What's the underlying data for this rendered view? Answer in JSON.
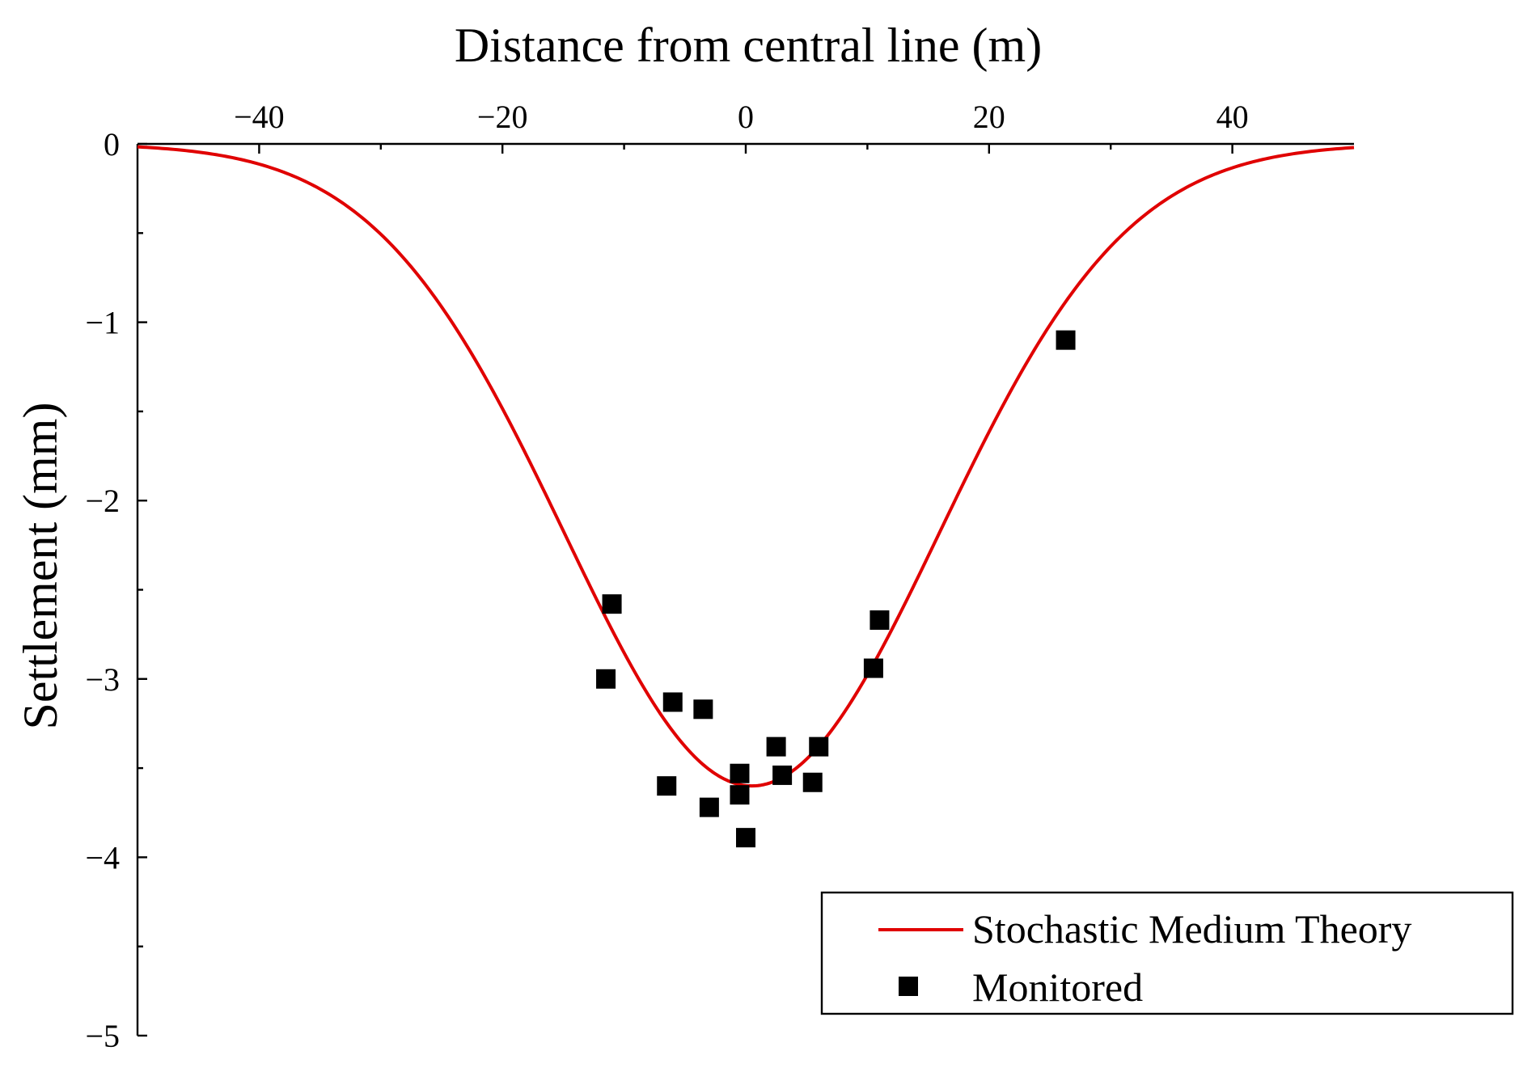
{
  "chart_data": {
    "type": "line+scatter",
    "xlabel": "Distance from central line (m)",
    "ylabel": "Settlement (mm)",
    "xlim": [
      -50,
      50
    ],
    "ylim": [
      -5,
      0
    ],
    "x_ticks": [
      {
        "value": -40,
        "label": "−40"
      },
      {
        "value": -20,
        "label": "−20"
      },
      {
        "value": 0,
        "label": "0"
      },
      {
        "value": 20,
        "label": "20"
      },
      {
        "value": 40,
        "label": "40"
      }
    ],
    "x_minor_ticks": [
      -30,
      -10,
      10,
      30
    ],
    "y_ticks": [
      {
        "value": 0,
        "label": "0"
      },
      {
        "value": -1,
        "label": "−1"
      },
      {
        "value": -2,
        "label": "−2"
      },
      {
        "value": -3,
        "label": "−3"
      },
      {
        "value": -4,
        "label": "−4"
      },
      {
        "value": -5,
        "label": "−5"
      }
    ],
    "y_minor_ticks": [
      -0.5,
      -1.5,
      -2.5,
      -3.5,
      -4.5
    ],
    "series": [
      {
        "name": "Stochastic Medium Theory",
        "type": "line",
        "color": "#e00000",
        "model": {
          "peak": -3.6,
          "center": 0.5,
          "width_i": 15.4
        },
        "x": [
          -50,
          -45,
          -40,
          -35,
          -30,
          -25,
          -20,
          -15,
          -12,
          -10,
          -7.5,
          -5,
          -2.5,
          0,
          2.5,
          5,
          7.5,
          10,
          12,
          15,
          20,
          25,
          30,
          35,
          40,
          45,
          50
        ],
        "y": [
          -0.02,
          -0.05,
          -0.11,
          -0.24,
          -0.47,
          -0.85,
          -1.42,
          -2.11,
          -2.53,
          -2.79,
          -3.11,
          -3.37,
          -3.54,
          -3.6,
          -3.56,
          -3.42,
          -3.19,
          -2.89,
          -2.63,
          -2.23,
          -1.53,
          -0.94,
          -0.52,
          -0.26,
          -0.12,
          -0.05,
          -0.02
        ]
      },
      {
        "name": "Monitored",
        "type": "scatter",
        "color": "#000000",
        "marker": "square",
        "points": [
          {
            "x": -11.0,
            "y": -2.58
          },
          {
            "x": -11.5,
            "y": -3.0
          },
          {
            "x": -6.0,
            "y": -3.13
          },
          {
            "x": -3.5,
            "y": -3.17
          },
          {
            "x": -6.5,
            "y": -3.6
          },
          {
            "x": -3.0,
            "y": -3.72
          },
          {
            "x": -0.5,
            "y": -3.53
          },
          {
            "x": -0.5,
            "y": -3.65
          },
          {
            "x": 0.0,
            "y": -3.89
          },
          {
            "x": 2.5,
            "y": -3.38
          },
          {
            "x": 3.0,
            "y": -3.54
          },
          {
            "x": 5.5,
            "y": -3.58
          },
          {
            "x": 6.0,
            "y": -3.38
          },
          {
            "x": 10.5,
            "y": -2.94
          },
          {
            "x": 11.0,
            "y": -2.67
          },
          {
            "x": 26.3,
            "y": -1.1
          }
        ]
      }
    ],
    "legend": {
      "position": "bottom-right",
      "entries": [
        "Stochastic Medium Theory",
        "Monitored"
      ]
    }
  }
}
